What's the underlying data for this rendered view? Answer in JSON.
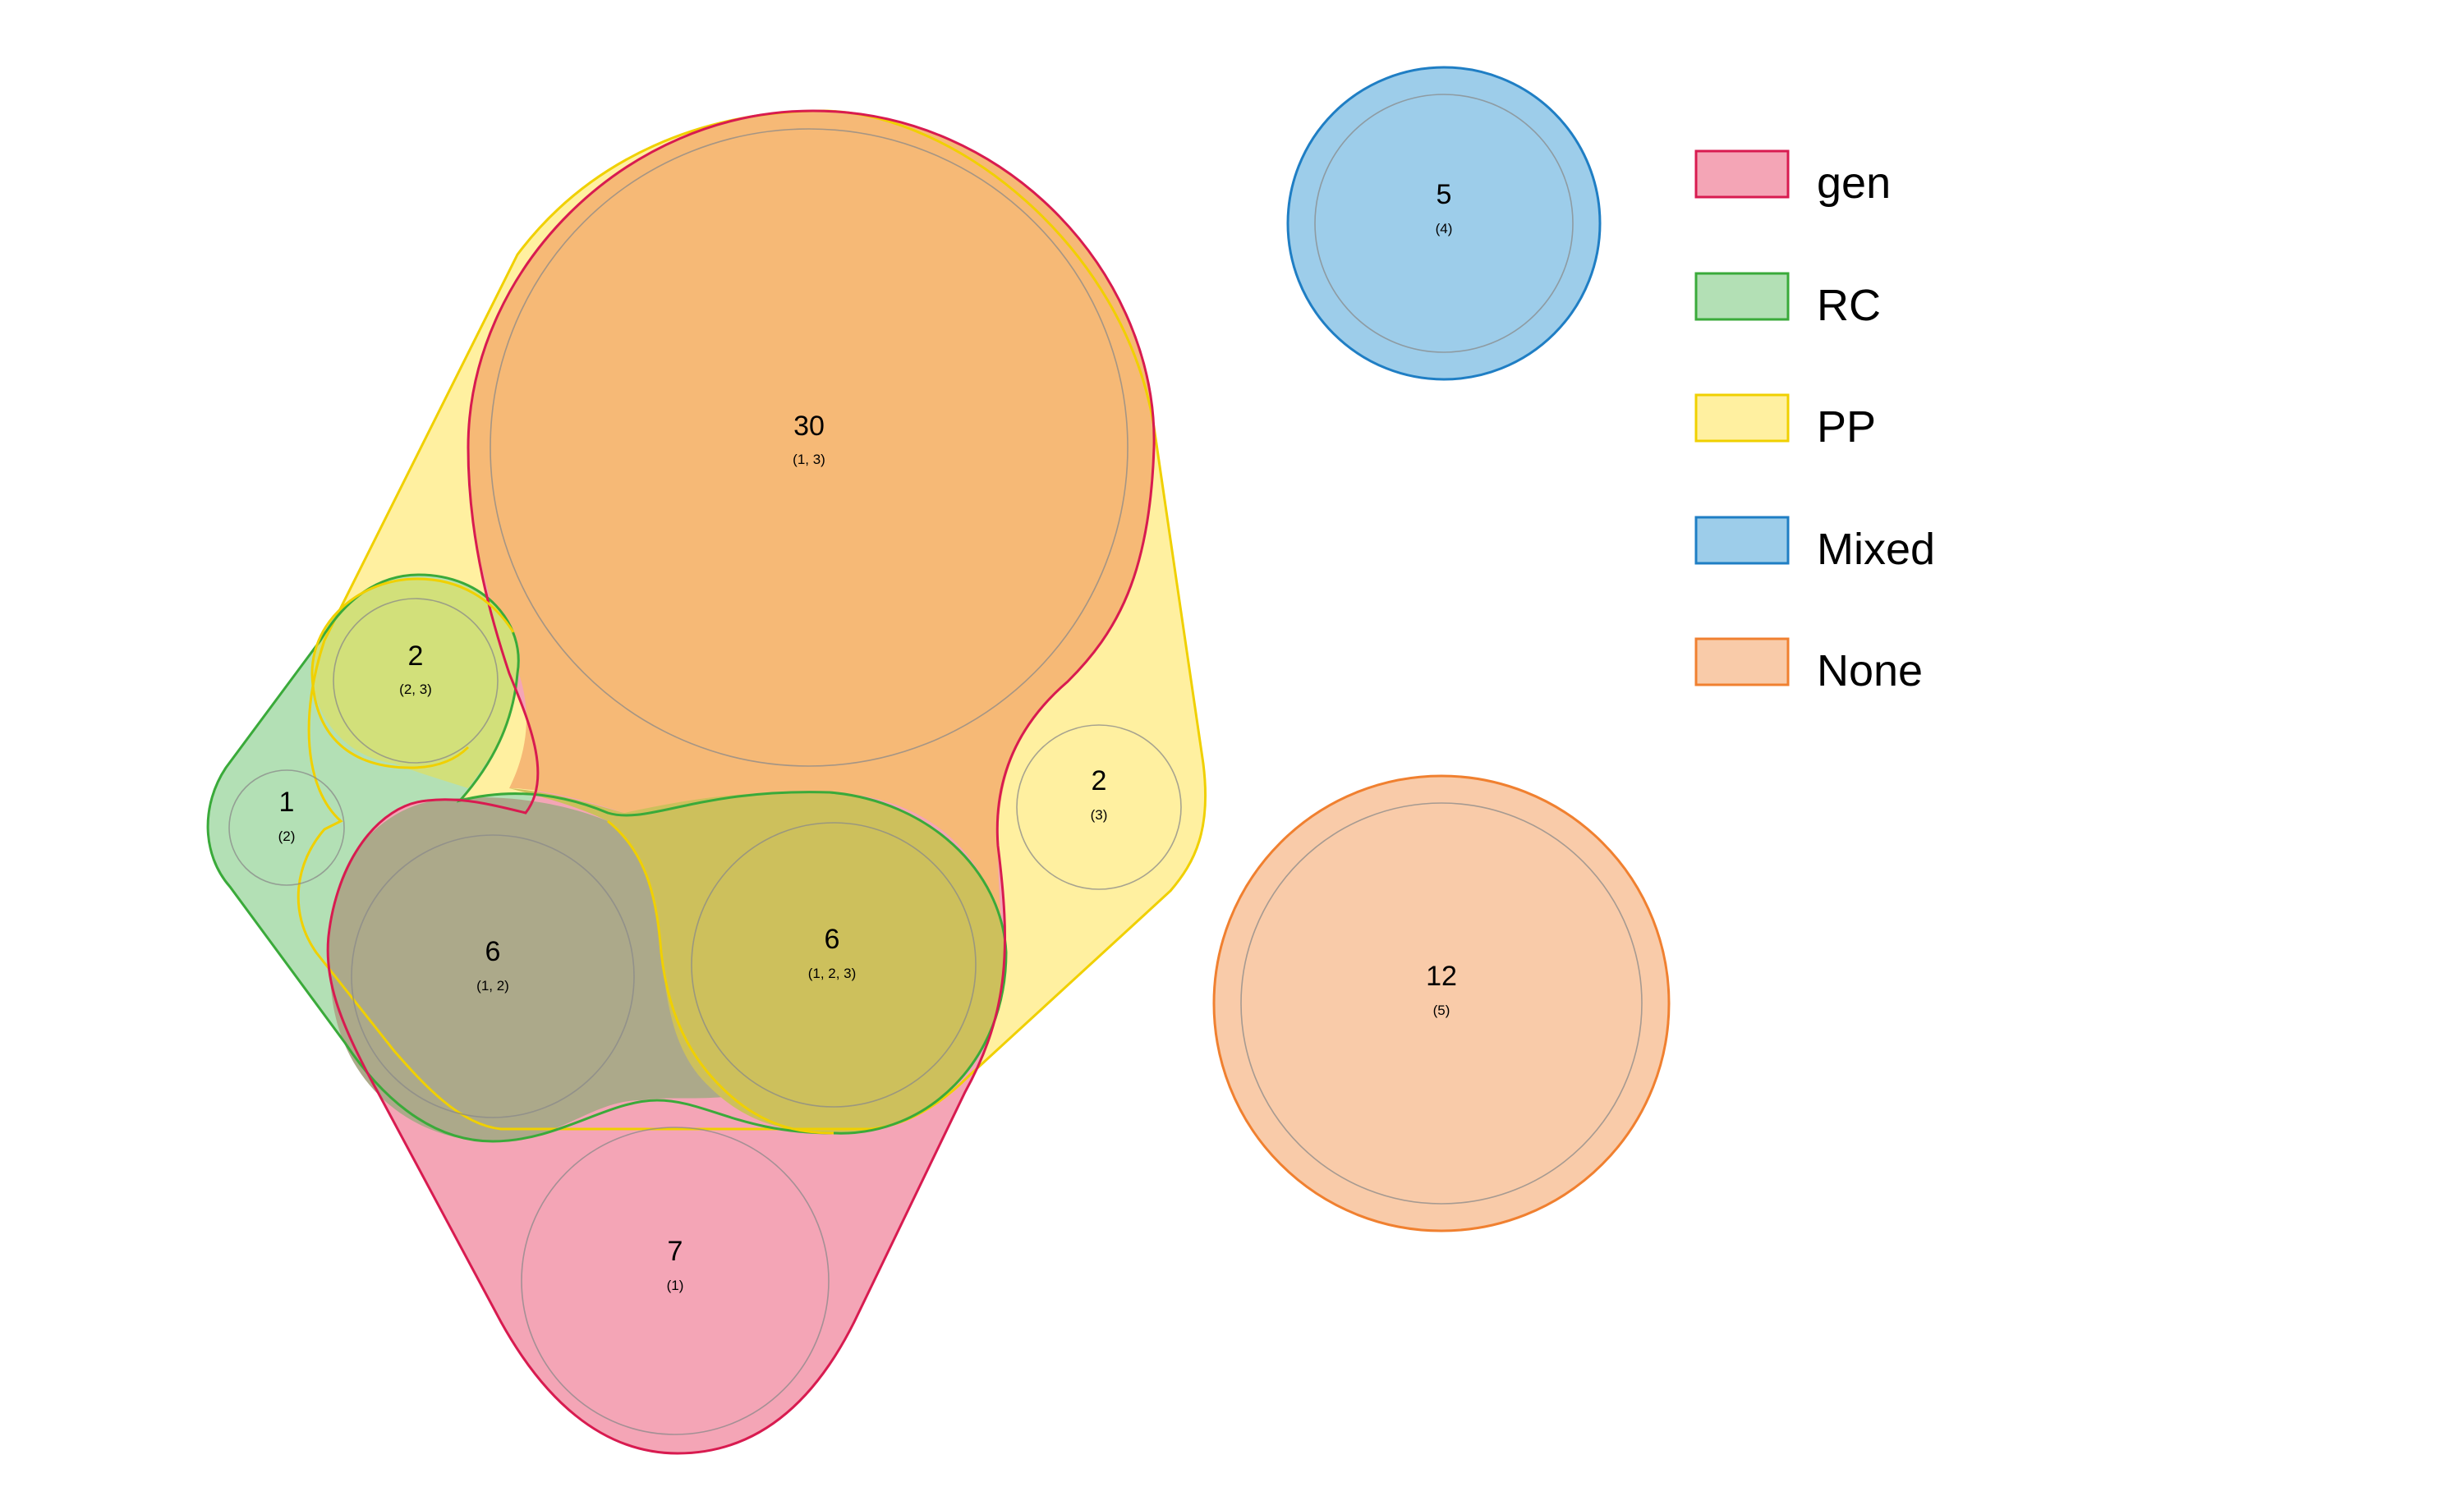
{
  "colors": {
    "gen": {
      "fill": "#f4a5b6",
      "stroke": "#d81b50"
    },
    "RC": {
      "fill": "#b3e0b5",
      "stroke": "#3aaa3a"
    },
    "PP": {
      "fill": "#fff0a0",
      "stroke": "#f0d000"
    },
    "Mixed": {
      "fill": "#9dcdea",
      "stroke": "#1f7ec4"
    },
    "None": {
      "fill": "#f9cba9",
      "stroke": "#f08030"
    },
    "gen_PP": "#f6b976",
    "gen_RC": "#aca98a",
    "RC_PP": "#d2e07a",
    "gen_RC_PP": "#cdc05c",
    "RC_PP_band": "#cdc05c"
  },
  "legend": [
    {
      "key": "gen",
      "label": "gen"
    },
    {
      "key": "RC",
      "label": "RC"
    },
    {
      "key": "PP",
      "label": "PP"
    },
    {
      "key": "Mixed",
      "label": "Mixed"
    },
    {
      "key": "None",
      "label": "None"
    }
  ],
  "regions": [
    {
      "id": "gen-pp",
      "count": "30",
      "sets": "(1, 3)"
    },
    {
      "id": "rc-pp",
      "count": "2",
      "sets": "(2, 3)"
    },
    {
      "id": "rc-only",
      "count": "1",
      "sets": "(2)"
    },
    {
      "id": "pp-only",
      "count": "2",
      "sets": "(3)"
    },
    {
      "id": "gen-rc",
      "count": "6",
      "sets": "(1, 2)"
    },
    {
      "id": "gen-rc-pp",
      "count": "6",
      "sets": "(1, 2, 3)"
    },
    {
      "id": "gen-only",
      "count": "7",
      "sets": "(1)"
    },
    {
      "id": "mixed-only",
      "count": "5",
      "sets": "(4)"
    },
    {
      "id": "none-only",
      "count": "12",
      "sets": "(5)"
    }
  ]
}
